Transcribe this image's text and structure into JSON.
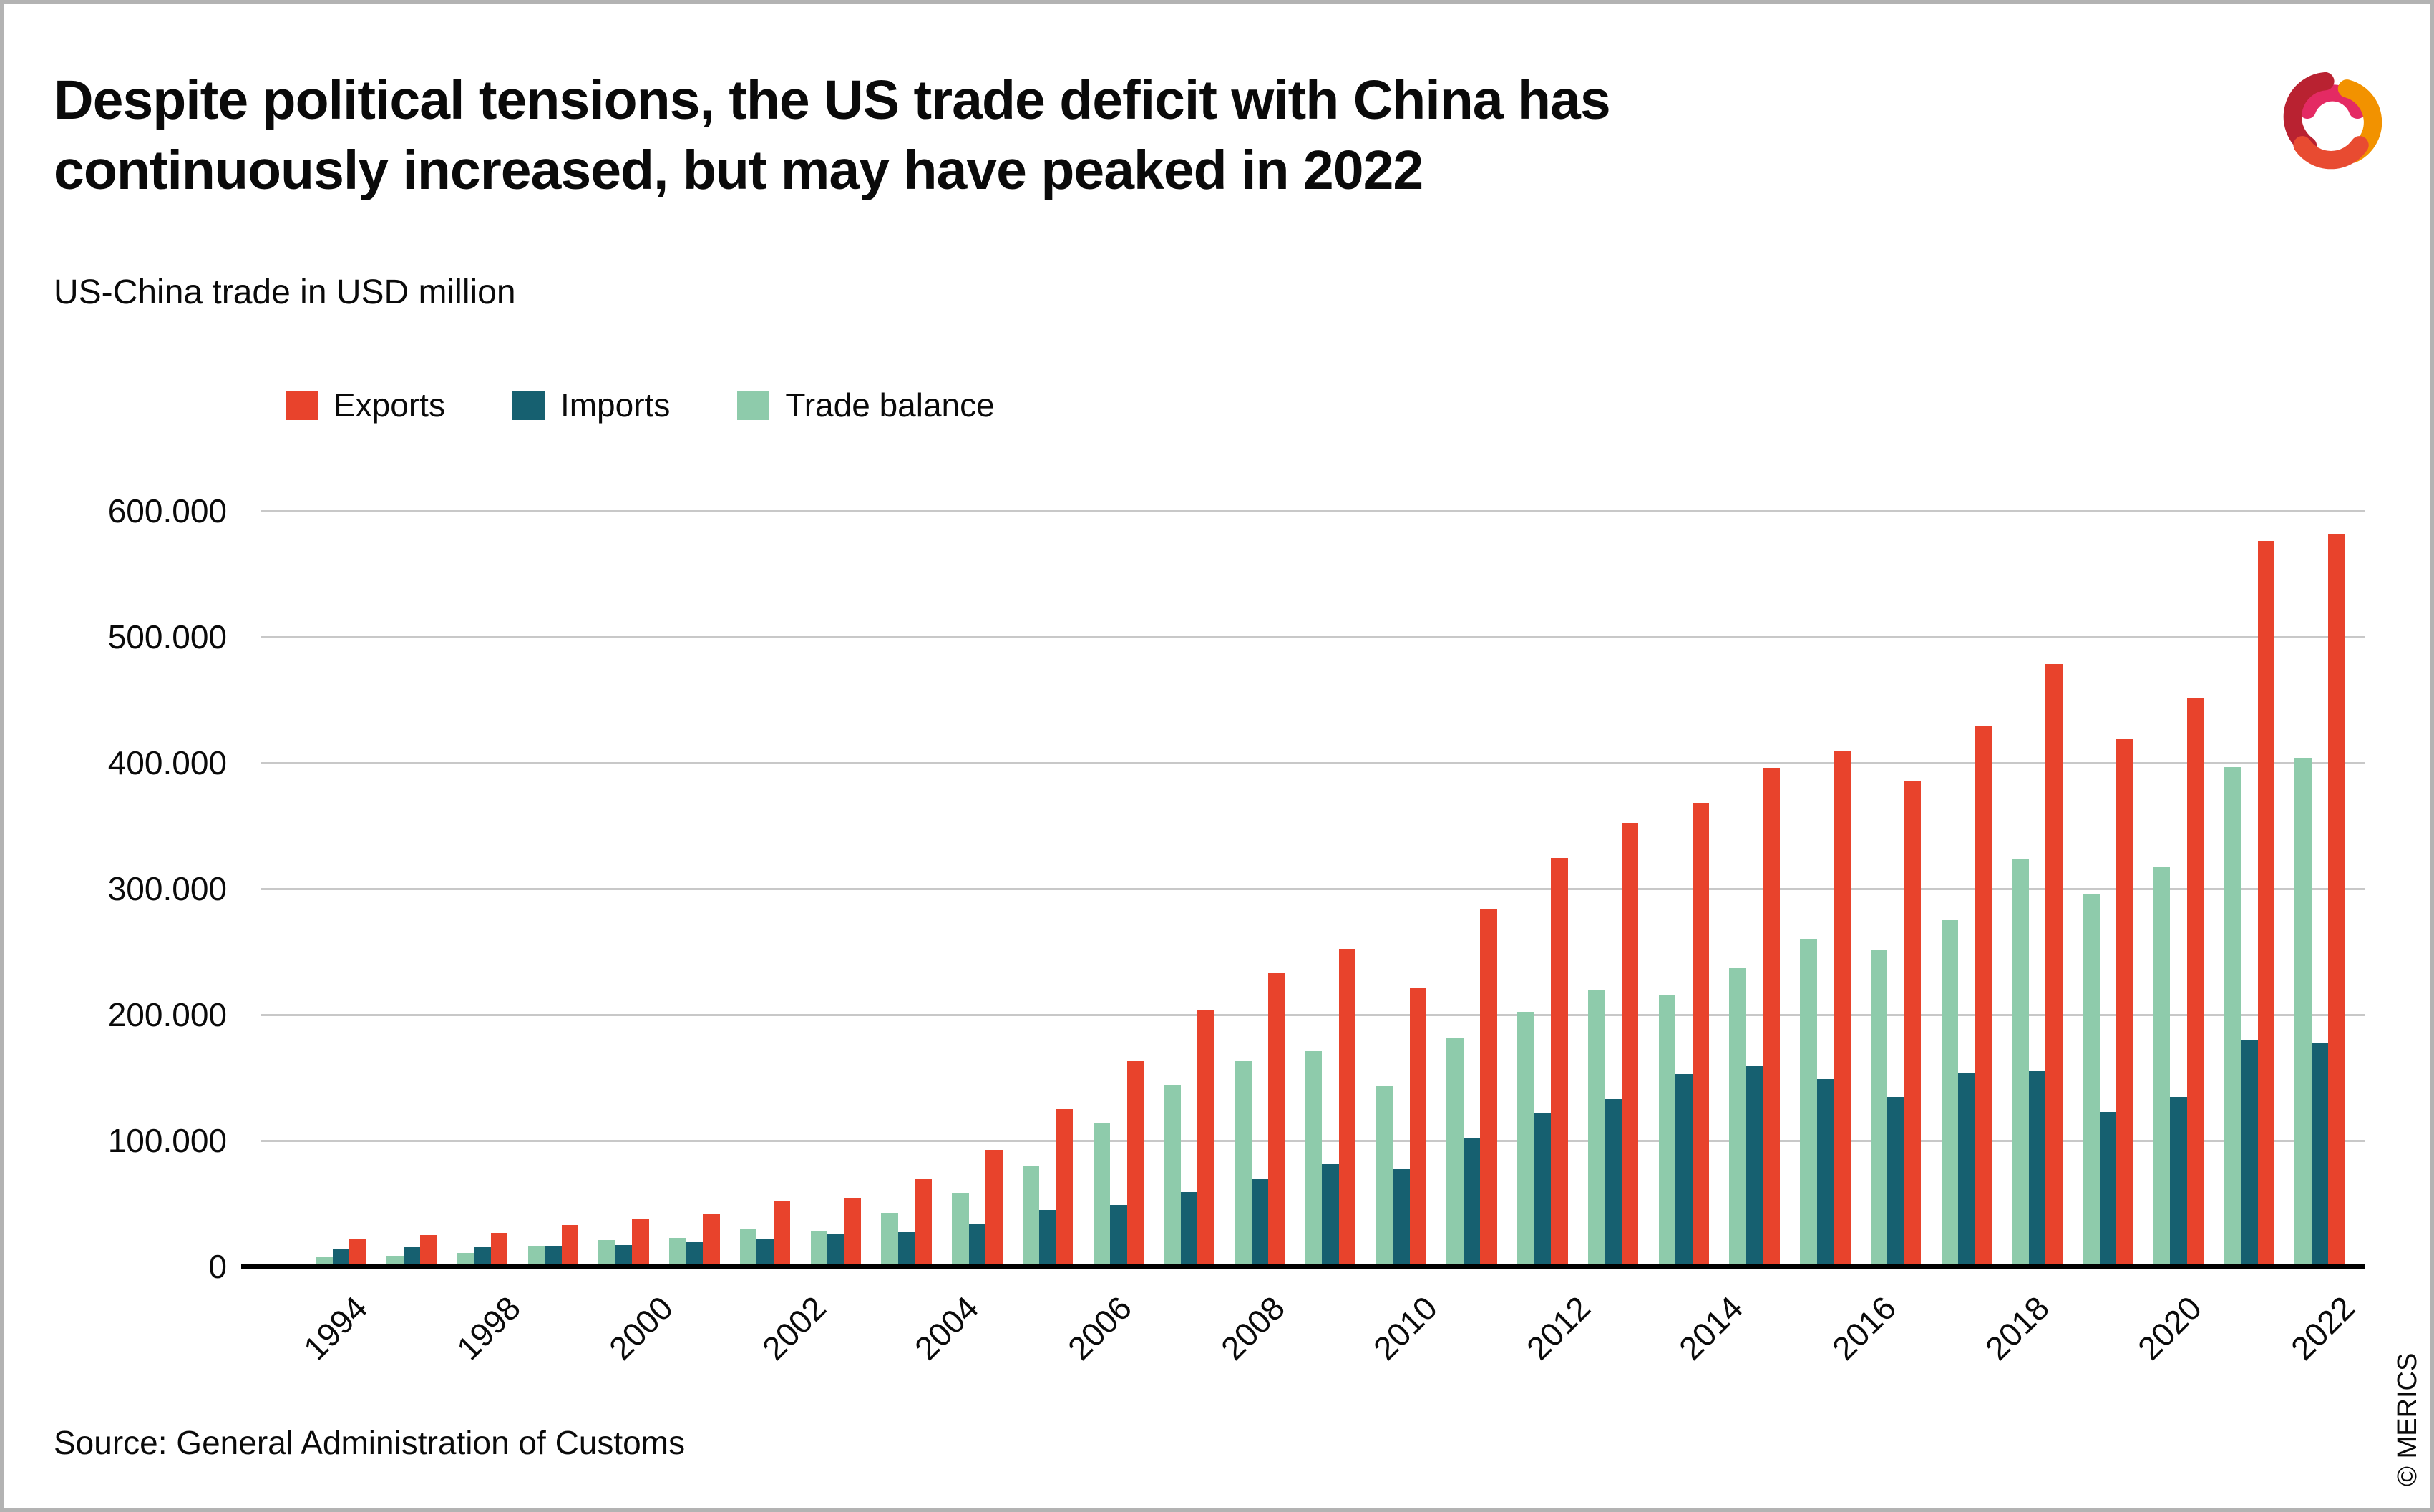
{
  "header": {
    "title_line1": "Despite political tensions, the US trade deficit with China has",
    "title_line2": "continuously increased, but may have peaked in 2022",
    "subtitle": "US-China trade in USD million"
  },
  "footer": {
    "source": "Source: General Administration of Customs",
    "copyright": "© MERICS"
  },
  "colors": {
    "exports": "#e8432c",
    "imports": "#166070",
    "trade_balance": "#8ecbab",
    "gridline": "#c8c8c8",
    "axis_line": "#000000",
    "frame": "#b3b3b3"
  },
  "chart_data": {
    "type": "bar",
    "title": "Despite political tensions, the US trade deficit with China has continuously increased, but may have peaked in 2022",
    "subtitle": "US-China trade in USD million",
    "unit": "USD million",
    "grid": true,
    "legend_position": "top-left",
    "categories": [
      1994,
      1995,
      1996,
      1997,
      1998,
      1999,
      2000,
      2001,
      2002,
      2003,
      2004,
      2005,
      2006,
      2007,
      2008,
      2009,
      2010,
      2011,
      2012,
      2013,
      2014,
      2015,
      2016,
      2017,
      2018,
      2019,
      2020,
      2021,
      2022
    ],
    "series": [
      {
        "name": "Exports",
        "color": "#e8432c",
        "values": [
          21421,
          24744,
          26731,
          32744,
          38001,
          41946,
          52104,
          54319,
          69959,
          92510,
          124973,
          162939,
          203516,
          232761,
          252327,
          220817,
          283304,
          324565,
          352438,
          368427,
          396082,
          409214,
          385678,
          429755,
          478423,
          418509,
          451813,
          576114,
          581783
        ]
      },
      {
        "name": "Imports",
        "color": "#166070",
        "values": [
          13977,
          16123,
          16179,
          16290,
          16997,
          19480,
          22363,
          26204,
          27227,
          33883,
          44657,
          48734,
          59222,
          69861,
          81486,
          77457,
          102038,
          122153,
          132894,
          152581,
          159094,
          148740,
          134433,
          153943,
          155095,
          122714,
          134914,
          179530,
          177606
        ]
      },
      {
        "name": "Trade balance",
        "color": "#8ecbab",
        "values": [
          7444,
          8621,
          10552,
          16454,
          21004,
          22466,
          29741,
          28115,
          42732,
          58627,
          80316,
          114205,
          144294,
          162900,
          170841,
          143360,
          181266,
          202412,
          219544,
          215846,
          236988,
          260474,
          251245,
          275812,
          323328,
          295795,
          316899,
          396584,
          404177
        ]
      }
    ],
    "bar_order": [
      "Trade balance",
      "Imports",
      "Exports"
    ],
    "y_axis": {
      "tick_labels": [
        "600.000",
        "500.000",
        "400.000",
        "300.000",
        "200.000",
        "100.000",
        "0"
      ],
      "tick_values": [
        600000,
        500000,
        400000,
        300000,
        200000,
        100000,
        0
      ],
      "min": 0,
      "max": 600000,
      "gridline_step": 100000
    },
    "x_axis": {
      "labels": [
        "1994",
        "1998",
        "2000",
        "2002",
        "2004",
        "2006",
        "2008",
        "2010",
        "2012",
        "2014",
        "2016",
        "2018",
        "2020",
        "2022"
      ]
    }
  }
}
